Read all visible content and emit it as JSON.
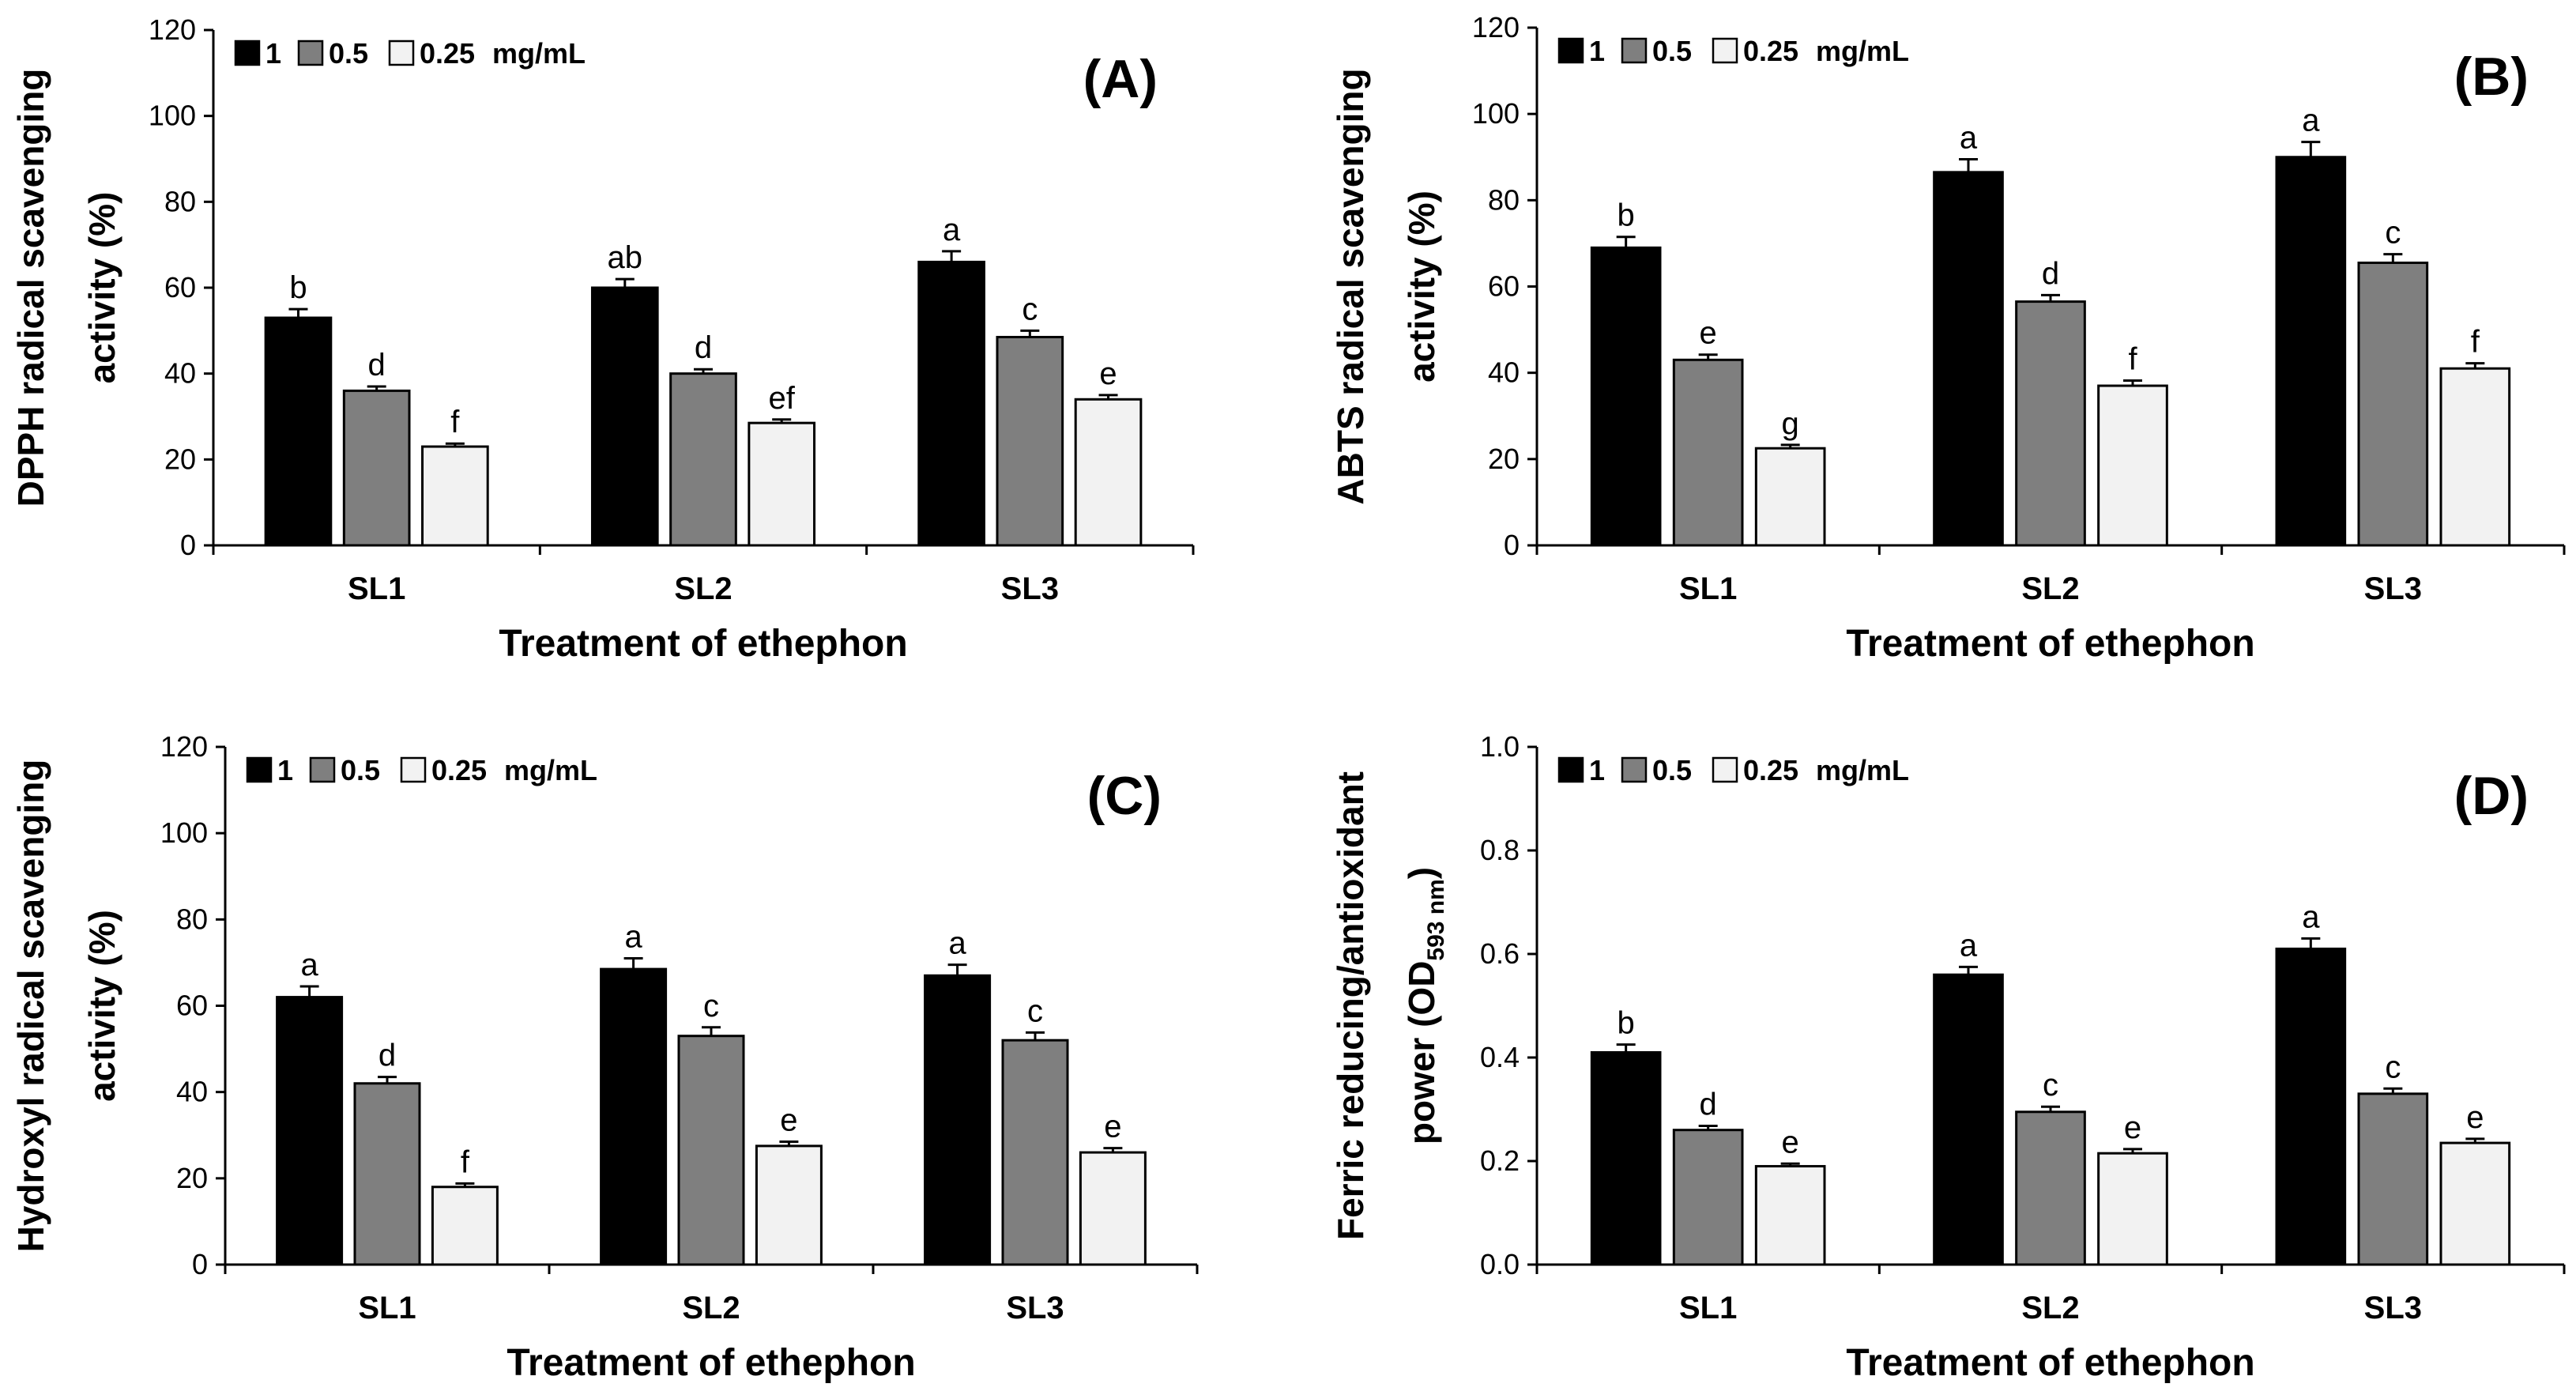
{
  "colors": {
    "dose_1": "#000000",
    "dose_0_5": "#7f7f7f",
    "dose_0_25": "#f2f2f2",
    "axis": "#000000"
  },
  "legend": {
    "items": [
      "1",
      "0.5",
      "0.25"
    ],
    "unit": "mg/mL"
  },
  "chart_data": [
    {
      "type": "bar",
      "panel": "(A)",
      "xlabel": "Treatment of ethephon",
      "ylabel_lines": [
        "DPPH radical scavenging",
        "activity (%)"
      ],
      "categories": [
        "SL1",
        "SL2",
        "SL3"
      ],
      "ylim": [
        0,
        120
      ],
      "yticks": [
        0,
        20,
        40,
        60,
        80,
        100,
        120
      ],
      "series": [
        {
          "name": "1",
          "values": [
            53,
            60,
            66
          ],
          "errors": [
            2,
            2,
            2.5
          ],
          "letters": [
            "b",
            "ab",
            "a"
          ]
        },
        {
          "name": "0.5",
          "values": [
            36,
            40,
            48.5
          ],
          "errors": [
            1,
            1,
            1.5
          ],
          "letters": [
            "d",
            "d",
            "c"
          ]
        },
        {
          "name": "0.25",
          "values": [
            23,
            28.5,
            34
          ],
          "errors": [
            0.7,
            0.8,
            1
          ],
          "letters": [
            "f",
            "ef",
            "e"
          ]
        }
      ]
    },
    {
      "type": "bar",
      "panel": "(B)",
      "xlabel": "Treatment of ethephon",
      "ylabel_lines": [
        "ABTS radical scavenging",
        "activity (%)"
      ],
      "categories": [
        "SL1",
        "SL2",
        "SL3"
      ],
      "ylim": [
        0,
        120
      ],
      "yticks": [
        0,
        20,
        40,
        60,
        80,
        100,
        120
      ],
      "series": [
        {
          "name": "1",
          "values": [
            69,
            86.5,
            90
          ],
          "errors": [
            2.5,
            3,
            3.5
          ],
          "letters": [
            "b",
            "a",
            "a"
          ]
        },
        {
          "name": "0.5",
          "values": [
            43,
            56.5,
            65.5
          ],
          "errors": [
            1.2,
            1.5,
            2
          ],
          "letters": [
            "e",
            "d",
            "c"
          ]
        },
        {
          "name": "0.25",
          "values": [
            22.5,
            37,
            41
          ],
          "errors": [
            0.8,
            1.2,
            1.2
          ],
          "letters": [
            "g",
            "f",
            "f"
          ]
        }
      ]
    },
    {
      "type": "bar",
      "panel": "(C)",
      "xlabel": "Treatment of ethephon",
      "ylabel_lines": [
        "Hydroxyl radical scavenging",
        "activity (%)"
      ],
      "categories": [
        "SL1",
        "SL2",
        "SL3"
      ],
      "ylim": [
        0,
        120
      ],
      "yticks": [
        0,
        20,
        40,
        60,
        80,
        100,
        120
      ],
      "series": [
        {
          "name": "1",
          "values": [
            62,
            68.5,
            67
          ],
          "errors": [
            2.5,
            2.5,
            2.5
          ],
          "letters": [
            "a",
            "a",
            "a"
          ]
        },
        {
          "name": "0.5",
          "values": [
            42,
            53,
            52
          ],
          "errors": [
            1.5,
            2,
            1.8
          ],
          "letters": [
            "d",
            "c",
            "c"
          ]
        },
        {
          "name": "0.25",
          "values": [
            18,
            27.5,
            26
          ],
          "errors": [
            0.8,
            1,
            1
          ],
          "letters": [
            "f",
            "e",
            "e"
          ]
        }
      ]
    },
    {
      "type": "bar",
      "panel": "(D)",
      "xlabel": "Treatment of ethephon",
      "ylabel_lines": [
        "Ferric reducing/antioxidant",
        "power (OD"
      ],
      "ylabel_sub": "593 nm",
      "ylabel_close": ")",
      "categories": [
        "SL1",
        "SL2",
        "SL3"
      ],
      "ylim": [
        0,
        1.0
      ],
      "yticks": [
        "0.0",
        "0.2",
        "0.4",
        "0.6",
        "0.8",
        "1.0"
      ],
      "series": [
        {
          "name": "1",
          "values": [
            0.41,
            0.56,
            0.61
          ],
          "errors": [
            0.015,
            0.015,
            0.02
          ],
          "letters": [
            "b",
            "a",
            "a"
          ]
        },
        {
          "name": "0.5",
          "values": [
            0.26,
            0.295,
            0.33
          ],
          "errors": [
            0.008,
            0.01,
            0.01
          ],
          "letters": [
            "d",
            "c",
            "c"
          ]
        },
        {
          "name": "0.25",
          "values": [
            0.19,
            0.215,
            0.235
          ],
          "errors": [
            0.005,
            0.008,
            0.008
          ],
          "letters": [
            "e",
            "e",
            "e"
          ]
        }
      ]
    }
  ]
}
